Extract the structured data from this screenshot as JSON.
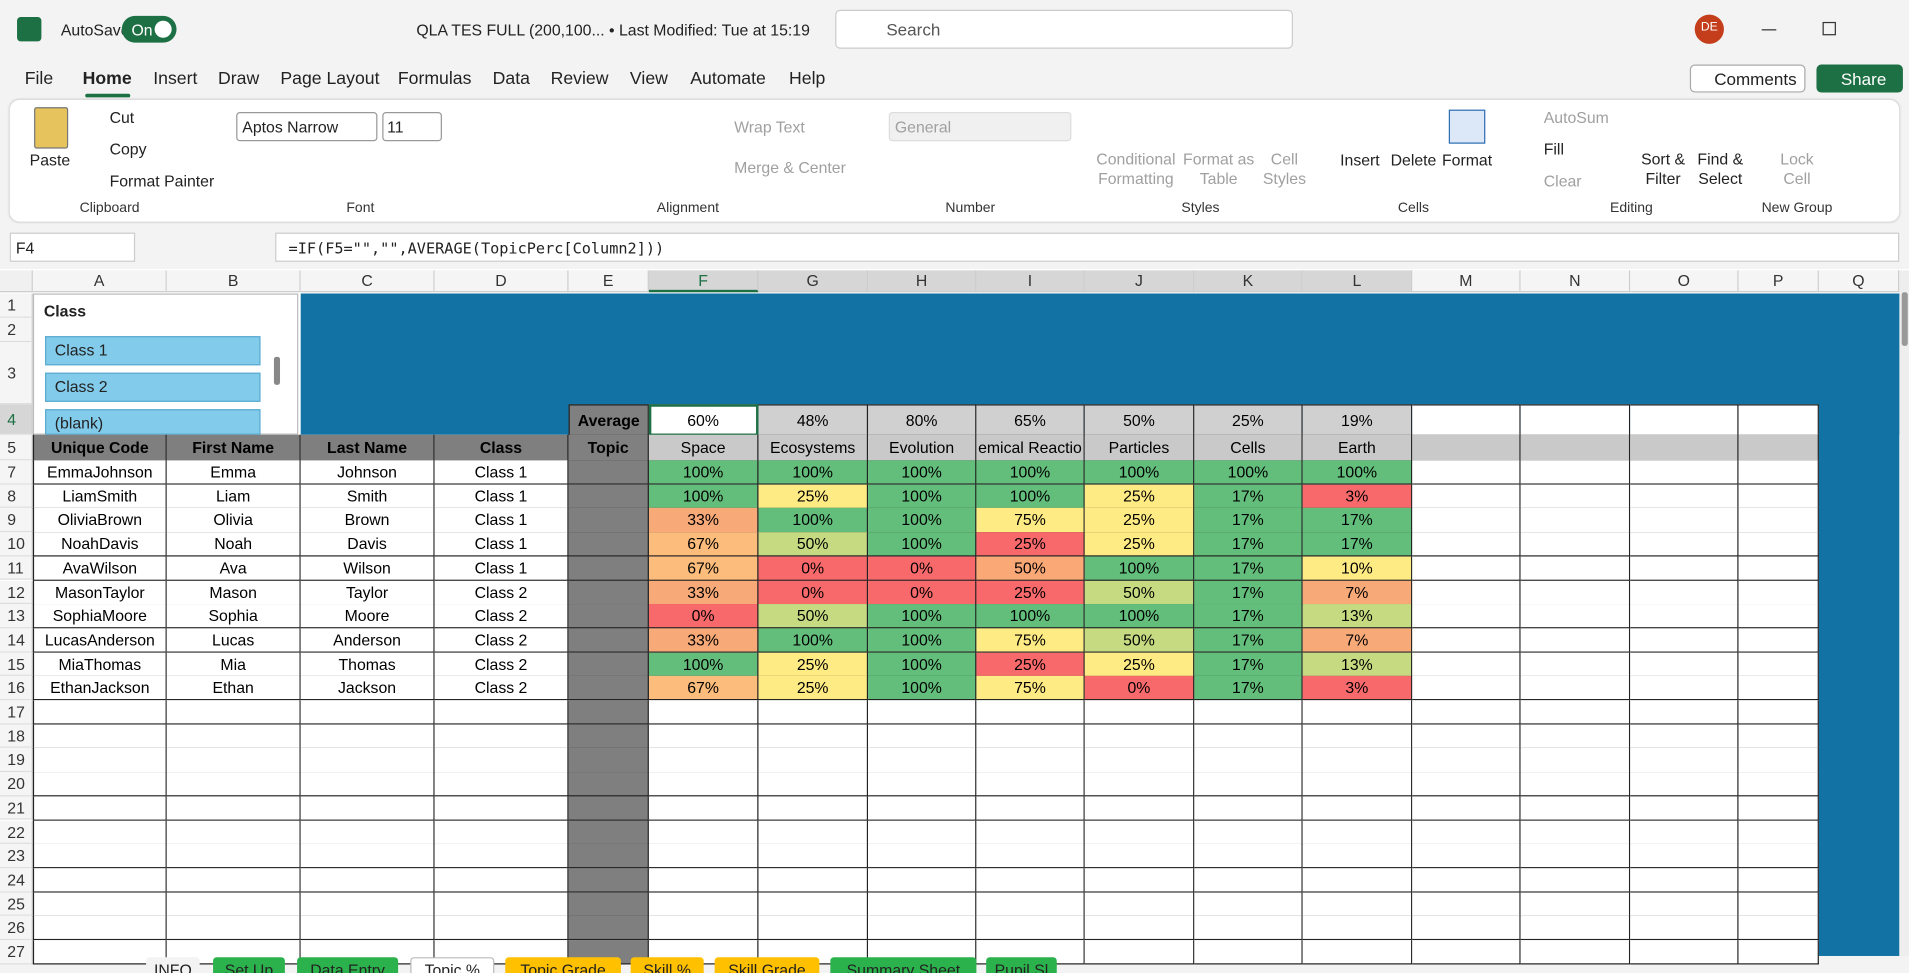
{
  "title_bar": {
    "autosave": "AutoSave",
    "toggle": "On",
    "file": "QLA TES FULL (200,100... • Last Modified: Tue at 15:19",
    "search": "Search",
    "user": "DE"
  },
  "menu": [
    "File",
    "Home",
    "Insert",
    "Draw",
    "Page Layout",
    "Formulas",
    "Data",
    "Review",
    "View",
    "Automate",
    "Help"
  ],
  "buttons": {
    "comments": "Comments",
    "share": "Share"
  },
  "ribbon": {
    "clipboard": {
      "label": "Clipboard",
      "paste": "Paste",
      "cut": "Cut",
      "copy": "Copy",
      "painter": "Format Painter"
    },
    "font": {
      "label": "Font",
      "name": "Aptos Narrow",
      "size": "11"
    },
    "alignment": {
      "label": "Alignment",
      "wrap": "Wrap Text",
      "merge": "Merge & Center"
    },
    "number": {
      "label": "Number",
      "format": "General"
    },
    "styles": {
      "label": "Styles",
      "conditional": "Conditional Formatting",
      "table": "Format as Table",
      "cell": "Cell Styles"
    },
    "cells": {
      "label": "Cells",
      "insert": "Insert",
      "delete": "Delete",
      "format": "Format"
    },
    "editing": {
      "label": "Editing",
      "autosum": "AutoSum",
      "fill": "Fill",
      "clear": "Clear",
      "sort": "Sort & Filter",
      "find": "Find & Select"
    },
    "new_group": {
      "label": "New Group",
      "lock": "Lock Cell"
    }
  },
  "name_box": "F4",
  "formula": "=IF(F5=\"\",\"\",AVERAGE(TopicPerc[Column2]))",
  "columns": [
    "A",
    "B",
    "C",
    "D",
    "E",
    "F",
    "G",
    "H",
    "I",
    "J",
    "K",
    "L",
    "M",
    "N",
    "O",
    "P",
    "Q"
  ],
  "row_numbers": [
    1,
    2,
    3,
    4,
    5,
    7,
    8,
    9,
    10,
    11,
    12,
    13,
    14,
    15,
    16,
    17,
    18,
    19,
    20,
    21,
    22,
    23,
    24,
    25,
    26,
    27
  ],
  "slicer": {
    "title": "Class",
    "items": [
      "Class 1",
      "Class 2",
      "(blank)"
    ]
  },
  "average": {
    "label": "Average",
    "values": [
      "60%",
      "48%",
      "80%",
      "65%",
      "50%",
      "25%",
      "19%"
    ]
  },
  "headers": [
    "Unique Code",
    "First Name",
    "Last Name",
    "Class",
    "Topic",
    "Space",
    "Ecosystems",
    "Evolution",
    "emical Reactio",
    "Particles",
    "Cells",
    "Earth"
  ],
  "students": [
    [
      "EmmaJohnson",
      "Emma",
      "Johnson",
      "Class 1",
      "100%",
      "100%",
      "100%",
      "100%",
      "100%",
      "100%",
      "100%"
    ],
    [
      "LiamSmith",
      "Liam",
      "Smith",
      "Class 1",
      "100%",
      "25%",
      "100%",
      "100%",
      "25%",
      "17%",
      "3%"
    ],
    [
      "OliviaBrown",
      "Olivia",
      "Brown",
      "Class 1",
      "33%",
      "100%",
      "100%",
      "75%",
      "25%",
      "17%",
      "17%"
    ],
    [
      "NoahDavis",
      "Noah",
      "Davis",
      "Class 1",
      "67%",
      "50%",
      "100%",
      "25%",
      "25%",
      "17%",
      "17%"
    ],
    [
      "AvaWilson",
      "Ava",
      "Wilson",
      "Class 1",
      "67%",
      "0%",
      "0%",
      "50%",
      "100%",
      "17%",
      "10%"
    ],
    [
      "MasonTaylor",
      "Mason",
      "Taylor",
      "Class 2",
      "33%",
      "0%",
      "0%",
      "25%",
      "50%",
      "17%",
      "7%"
    ],
    [
      "SophiaMoore",
      "Sophia",
      "Moore",
      "Class 2",
      "0%",
      "50%",
      "100%",
      "100%",
      "100%",
      "17%",
      "13%"
    ],
    [
      "LucasAnderson",
      "Lucas",
      "Anderson",
      "Class 2",
      "33%",
      "100%",
      "100%",
      "75%",
      "50%",
      "17%",
      "7%"
    ],
    [
      "MiaThomas",
      "Mia",
      "Thomas",
      "Class 2",
      "100%",
      "25%",
      "100%",
      "25%",
      "25%",
      "17%",
      "13%"
    ],
    [
      "EthanJackson",
      "Ethan",
      "Jackson",
      "Class 2",
      "67%",
      "25%",
      "100%",
      "75%",
      "0%",
      "17%",
      "3%"
    ]
  ],
  "cell_colors": [
    [
      "#63be7b",
      "#63be7b",
      "#63be7b",
      "#63be7b",
      "#63be7b",
      "#63be7b",
      "#63be7b"
    ],
    [
      "#63be7b",
      "#ffeb84",
      "#63be7b",
      "#63be7b",
      "#ffeb84",
      "#63be7b",
      "#f8696b"
    ],
    [
      "#f8a978",
      "#63be7b",
      "#63be7b",
      "#ffeb84",
      "#ffeb84",
      "#63be7b",
      "#63be7b"
    ],
    [
      "#fcbc7b",
      "#c6db81",
      "#63be7b",
      "#f8696b",
      "#ffeb84",
      "#63be7b",
      "#63be7b"
    ],
    [
      "#fcbc7b",
      "#f8696b",
      "#f8696b",
      "#fba877",
      "#63be7b",
      "#63be7b",
      "#ffeb84"
    ],
    [
      "#f8a978",
      "#f8696b",
      "#f8696b",
      "#f8696b",
      "#c6db81",
      "#63be7b",
      "#f8a978"
    ],
    [
      "#f8696b",
      "#c6db81",
      "#63be7b",
      "#63be7b",
      "#63be7b",
      "#63be7b",
      "#c6db81"
    ],
    [
      "#f8a978",
      "#63be7b",
      "#63be7b",
      "#ffeb84",
      "#c6db81",
      "#63be7b",
      "#f8a978"
    ],
    [
      "#63be7b",
      "#ffeb84",
      "#63be7b",
      "#f8696b",
      "#ffeb84",
      "#63be7b",
      "#c6db81"
    ],
    [
      "#fcbc7b",
      "#ffeb84",
      "#63be7b",
      "#ffeb84",
      "#f8696b",
      "#63be7b",
      "#f8696b"
    ]
  ],
  "sheets": [
    {
      "name": "INFO",
      "color": "#f3f3f3"
    },
    {
      "name": "Set Up",
      "color": "#2bb24c"
    },
    {
      "name": "Data Entry",
      "color": "#2bb24c"
    },
    {
      "name": "Topic %",
      "color": "#ffffff"
    },
    {
      "name": "Topic Grade",
      "color": "#ffc000"
    },
    {
      "name": "Skill %",
      "color": "#ffc000"
    },
    {
      "name": "Skill Grade",
      "color": "#ffc000"
    },
    {
      "name": "Summary Sheet",
      "color": "#2bb24c"
    },
    {
      "name": "Pupil Sl",
      "color": "#2bb24c"
    }
  ]
}
